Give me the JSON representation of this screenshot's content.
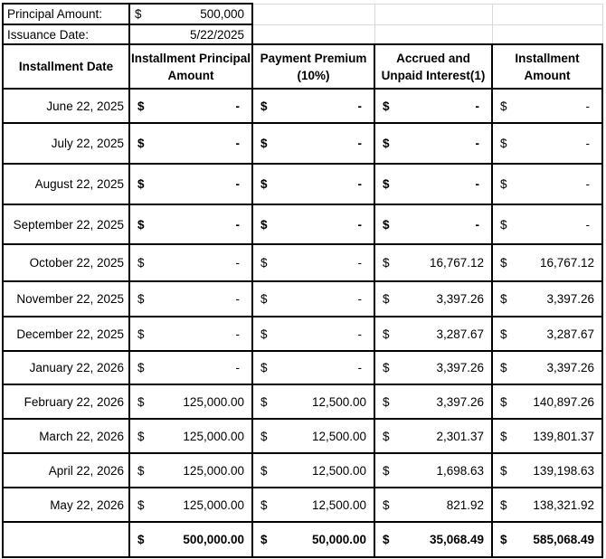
{
  "currency": "$",
  "top": {
    "principal_label": "Principal Amount:",
    "principal_value": "500,000",
    "issuance_label": "Issuance Date:",
    "issuance_value": "5/22/2025"
  },
  "headers": [
    {
      "line1": "Installment Date",
      "line2": ""
    },
    {
      "line1": "Installment Principal",
      "line2": "Amount"
    },
    {
      "line1": "Payment Premium",
      "line2": "(10%)"
    },
    {
      "line1": "Accrued and",
      "line2": "Unpaid Interest(1)"
    },
    {
      "line1": "Installment",
      "line2": "Amount"
    }
  ],
  "rows": [
    {
      "date": "June 22, 2025",
      "principal": "-",
      "premium": "-",
      "interest": "-",
      "installment": "-"
    },
    {
      "date": "July 22, 2025",
      "principal": "-",
      "premium": "-",
      "interest": "-",
      "installment": "-"
    },
    {
      "date": "August 22, 2025",
      "principal": "-",
      "premium": "-",
      "interest": "-",
      "installment": "-"
    },
    {
      "date": "September 22, 2025",
      "principal": "-",
      "premium": "-",
      "interest": "-",
      "installment": "-"
    },
    {
      "date": "October 22, 2025",
      "principal": "-",
      "premium": "-",
      "interest": "16,767.12",
      "installment": "16,767.12"
    },
    {
      "date": "November 22, 2025",
      "principal": "-",
      "premium": "-",
      "interest": "3,397.26",
      "installment": "3,397.26"
    },
    {
      "date": "December 22, 2025",
      "principal": "-",
      "premium": "-",
      "interest": "3,287.67",
      "installment": "3,287.67"
    },
    {
      "date": "January 22, 2026",
      "principal": "-",
      "premium": "-",
      "interest": "3,397.26",
      "installment": "3,397.26"
    },
    {
      "date": "February 22, 2026",
      "principal": "125,000.00",
      "premium": "12,500.00",
      "interest": "3,397.26",
      "installment": "140,897.26"
    },
    {
      "date": "March 22, 2026",
      "principal": "125,000.00",
      "premium": "12,500.00",
      "interest": "2,301.37",
      "installment": "139,801.37"
    },
    {
      "date": "April 22, 2026",
      "principal": "125,000.00",
      "premium": "12,500.00",
      "interest": "1,698.63",
      "installment": "139,198.63"
    },
    {
      "date": "May 22, 2026",
      "principal": "125,000.00",
      "premium": "12,500.00",
      "interest": "821.92",
      "installment": "138,321.92"
    }
  ],
  "total": {
    "date": "",
    "principal": "500,000.00",
    "premium": "50,000.00",
    "interest": "35,068.49",
    "installment": "585,068.49"
  },
  "colors": {
    "border": "#000000",
    "gridline": "#d9d9d9",
    "text": "#000000",
    "background": "#ffffff"
  }
}
